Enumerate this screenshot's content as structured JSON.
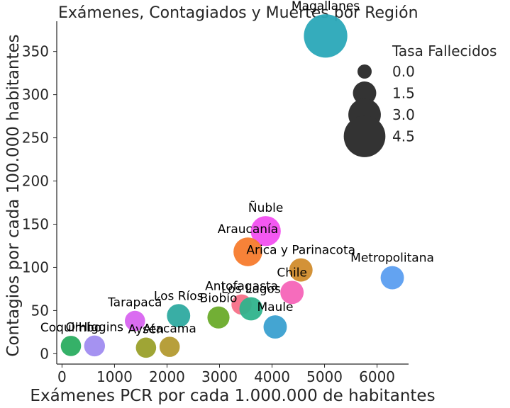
{
  "chart_data": {
    "type": "scatter",
    "title": "Exámenes, Contagiados y Muertes por Región",
    "xlabel": "Exámenes PCR por cada 1.000.000 de habitantes",
    "ylabel": "Contagios por cada 100.000 habitantes",
    "xlim": [
      -100,
      6600
    ],
    "ylim": [
      -12,
      385
    ],
    "xticks": [
      0,
      1000,
      2000,
      3000,
      4000,
      5000,
      6000
    ],
    "yticks": [
      0,
      50,
      100,
      150,
      200,
      250,
      300,
      350
    ],
    "xtick_labels": [
      "0",
      "1000",
      "2000",
      "3000",
      "4000",
      "5000",
      "6000"
    ],
    "ytick_labels": [
      "0",
      "50",
      "100",
      "150",
      "200",
      "250",
      "300",
      "350"
    ],
    "grid": false,
    "points": [
      {
        "label": "Magallanes",
        "x": 5020,
        "y": 368,
        "size": 4.8,
        "color": "#2aa8b8"
      },
      {
        "label": "Ñuble",
        "x": 3880,
        "y": 142,
        "size": 2.6,
        "color": "#f24ff0"
      },
      {
        "label": "Araucanía",
        "x": 3540,
        "y": 118,
        "size": 2.4,
        "color": "#f77b2d"
      },
      {
        "label": "Arica y Parinacota",
        "x": 4550,
        "y": 97,
        "size": 1.5,
        "color": "#d18c2c"
      },
      {
        "label": "Metropolitana",
        "x": 6290,
        "y": 88,
        "size": 1.5,
        "color": "#5b9ef0"
      },
      {
        "label": "Chile",
        "x": 4380,
        "y": 71,
        "size": 1.5,
        "color": "#f564b8"
      },
      {
        "label": "Antofagasta",
        "x": 3420,
        "y": 57,
        "size": 1.0,
        "color": "#f77088"
      },
      {
        "label": "Los Lagos",
        "x": 3600,
        "y": 52,
        "size": 1.5,
        "color": "#2fb38c"
      },
      {
        "label": "Los Ríos",
        "x": 2220,
        "y": 44,
        "size": 1.5,
        "color": "#2eaaa0"
      },
      {
        "label": "Biobío",
        "x": 2980,
        "y": 42,
        "size": 1.3,
        "color": "#6aab2a"
      },
      {
        "label": "Maule",
        "x": 4060,
        "y": 31,
        "size": 1.5,
        "color": "#3aa0d0"
      },
      {
        "label": "Tarapacá",
        "x": 1390,
        "y": 38,
        "size": 1.0,
        "color": "#d864f0"
      },
      {
        "label": "Coquimbo",
        "x": 170,
        "y": 9,
        "size": 1.0,
        "color": "#2aad60"
      },
      {
        "label": "O'Higgins",
        "x": 620,
        "y": 9,
        "size": 1.1,
        "color": "#a08cf0"
      },
      {
        "label": "Aysén",
        "x": 1600,
        "y": 7,
        "size": 1.0,
        "color": "#9aa02a"
      },
      {
        "label": "Atacama",
        "x": 2050,
        "y": 8,
        "size": 1.0,
        "color": "#b39a30"
      }
    ],
    "legend": {
      "title": "Tasa Fallecidos",
      "position": "top-right",
      "color": "#333333",
      "entries": [
        {
          "label": "0.0",
          "size": 0.0
        },
        {
          "label": "1.5",
          "size": 1.5
        },
        {
          "label": "3.0",
          "size": 3.0
        },
        {
          "label": "4.5",
          "size": 4.5
        }
      ]
    }
  }
}
